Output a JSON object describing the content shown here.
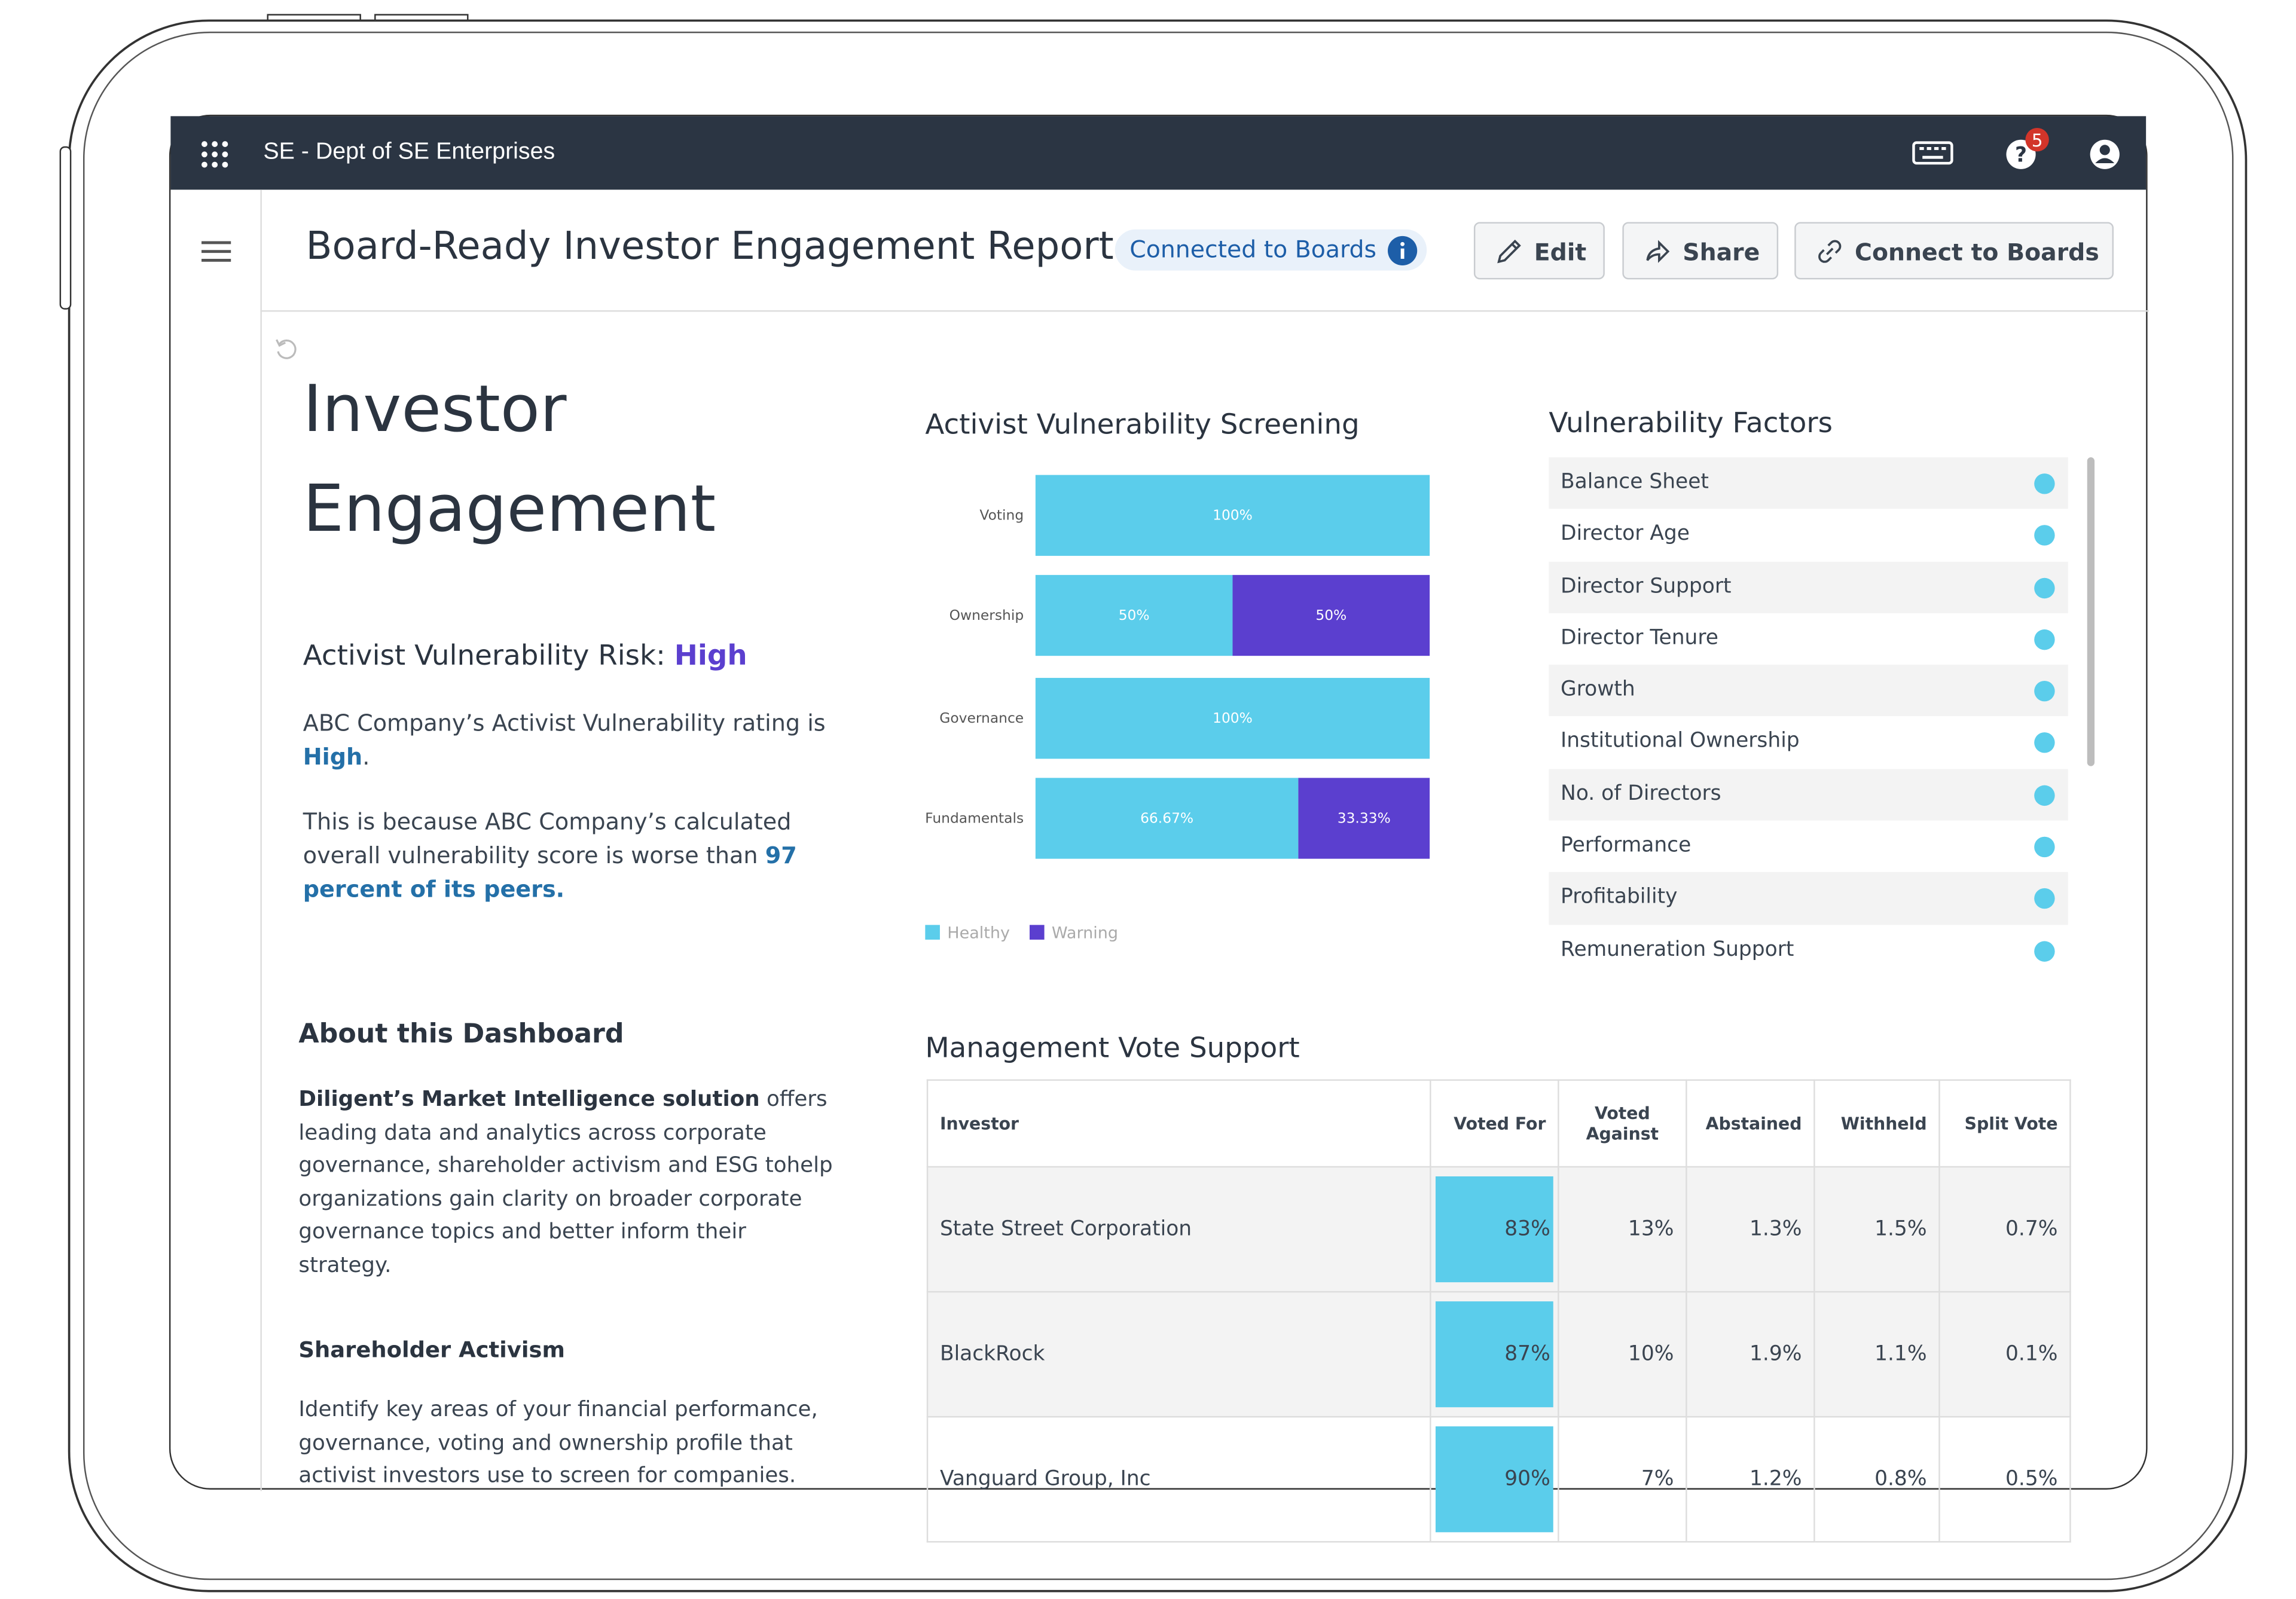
{
  "app_bar": {
    "org_name": "SE - Dept of SE Enterprises",
    "notifications": 5
  },
  "header": {
    "title": "Board-Ready Investor Engagement Report",
    "badge": "Connected to Boards",
    "actions": [
      "Edit",
      "Share",
      "Connect to Boards"
    ]
  },
  "summary": {
    "heading": [
      "Investor",
      "Engagement"
    ],
    "risk_label": "Activist Vulnerability Risk:",
    "risk_level": "High",
    "rating_text": [
      "ABC Company’s Activist Vulnerability rating is",
      "High",
      "."
    ],
    "reason_text": [
      "This is because ABC Company’s calculated overall vulnerability score is worse than",
      "97 percent of its peers."
    ]
  },
  "about": {
    "title": "About this Dashboard",
    "body": [
      "Diligent’s Market Intelligence solution",
      "offers leading data and analytics across corporate governance, shareholder activism and ESG tohelp organizations gain clarity on broader corporate governance topics and better inform their strategy."
    ],
    "section_title": "Shareholder Activism",
    "section_body": "Identify key areas of your financial performance, governance, voting and ownership profile that activist investors use to screen for companies."
  },
  "chart_data": {
    "type": "bar",
    "orientation": "horizontal",
    "stacked": true,
    "title": "Activist Vulnerability Screening",
    "categories": [
      "Voting",
      "Ownership",
      "Governance",
      "Fundamentals"
    ],
    "xlim": [
      0,
      100
    ],
    "series": [
      {
        "name": "Healthy",
        "color": "#5bcdeb",
        "values": [
          100,
          50,
          100,
          66.67
        ],
        "value_labels": [
          "100%",
          "50%",
          "100%",
          "66.67%"
        ]
      },
      {
        "name": "Warning",
        "color": "#5b3fcf",
        "values": [
          0,
          50,
          0,
          33.33
        ],
        "value_labels": [
          null,
          "50%",
          null,
          "33.33%"
        ]
      }
    ]
  },
  "vulnerability_factors": {
    "title": "Vulnerability Factors",
    "items": [
      "Balance Sheet",
      "Director Age",
      "Director Support",
      "Director Tenure",
      "Growth",
      "Institutional Ownership",
      "No. of Directors",
      "Performance",
      "Profitability",
      "Remuneration Support"
    ]
  },
  "vote_support": {
    "title": "Management Vote Support",
    "columns": [
      "Investor",
      "Voted For",
      "Voted Against",
      "Abstained",
      "Withheld",
      "Split Vote"
    ],
    "rows": [
      [
        "State Street Corporation",
        "83%",
        "13%",
        "1.3%",
        "1.5%",
        "0.7%"
      ],
      [
        "BlackRock",
        "87%",
        "10%",
        "1.9%",
        "1.1%",
        "0.1%"
      ],
      [
        "Vanguard Group, Inc",
        "90%",
        "7%",
        "1.2%",
        "0.8%",
        "0.5%"
      ]
    ]
  }
}
